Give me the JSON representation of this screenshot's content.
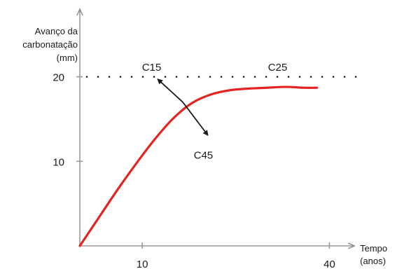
{
  "chart_data": {
    "type": "line",
    "title": "",
    "ylabel_lines": [
      "Avanço da",
      "carbonatação",
      "(mm)"
    ],
    "xlabel_lines": [
      "Tempo",
      "(anos)"
    ],
    "xlim": [
      0,
      44
    ],
    "ylim": [
      0,
      28
    ],
    "x_ticks": [
      10,
      40
    ],
    "y_ticks": [
      10,
      20
    ],
    "reference_line": {
      "y": 20,
      "style": "dotted"
    },
    "series": [
      {
        "color": "#e52421",
        "x": [
          0,
          3,
          6,
          9,
          12,
          15,
          18,
          21,
          24,
          27,
          30,
          33,
          36,
          38
        ],
        "y": [
          0,
          3.3,
          6.6,
          9.7,
          12.6,
          15.1,
          16.9,
          17.9,
          18.4,
          18.6,
          18.7,
          18.8,
          18.7,
          18.7
        ]
      }
    ],
    "annotations": [
      {
        "text": "C15",
        "x": 11.5,
        "y": 20.7
      },
      {
        "text": "C25",
        "x": 31.7,
        "y": 20.7
      },
      {
        "text": "C45",
        "x": 19.8,
        "y": 10.3
      }
    ],
    "arrows": [
      {
        "from": {
          "x": 16.5,
          "y": 17.0
        },
        "to": {
          "x": 12.5,
          "y": 19.7
        }
      },
      {
        "from": {
          "x": 16.5,
          "y": 17.0
        },
        "to": {
          "x": 20.5,
          "y": 13.1
        }
      }
    ]
  }
}
